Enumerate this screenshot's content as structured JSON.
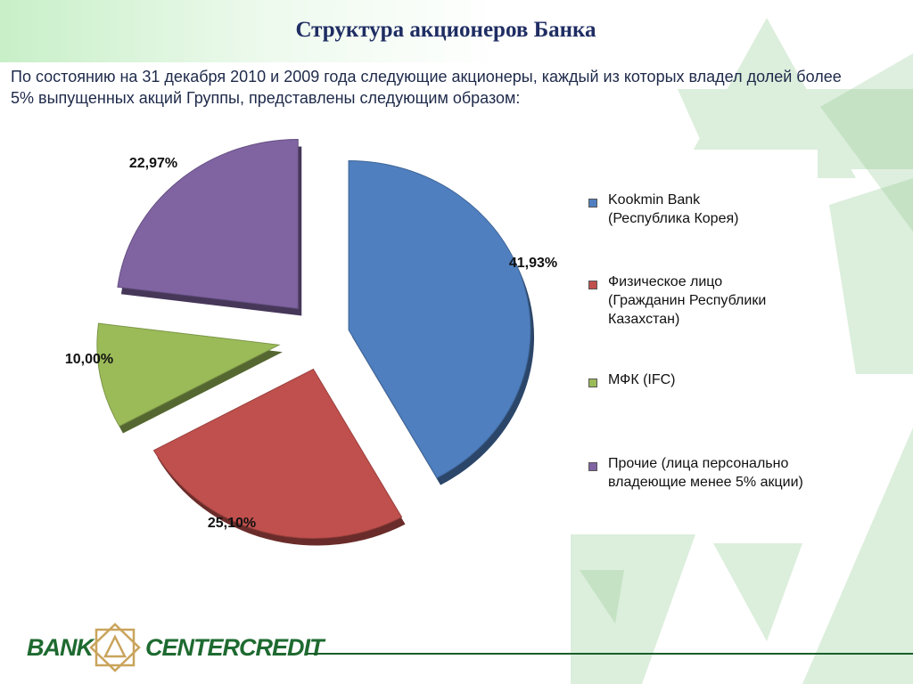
{
  "slide": {
    "title": "Структура акционеров Банка",
    "subtitle": "По состоянию на 31 декабря 2010 и 2009 года следующие акционеры, каждый из которых владел долей более 5% выпущенных акций Группы, представлены следующим образом:"
  },
  "chart_data": {
    "type": "pie",
    "exploded": true,
    "legend_position": "right",
    "slices": [
      {
        "name": "Kookmin Bank\n(Республика Корея)",
        "value": 41.93,
        "label": "41,93%",
        "color": "#4f7fbf"
      },
      {
        "name": "Физическое лицо\n(Гражданин Республики\nКазахстан)",
        "value": 25.1,
        "label": "25,10%",
        "color": "#c0504d"
      },
      {
        "name": "МФК (IFC)",
        "value": 10.0,
        "label": "10,00%",
        "color": "#9bbb59"
      },
      {
        "name": "Прочие (лица персонально\nвладеющие менее 5% акции)",
        "value": 22.97,
        "label": "22,97%",
        "color": "#8064a2"
      }
    ]
  },
  "footer": {
    "logo_left": "BANK",
    "logo_right": "CENTERCREDIT",
    "accent_color": "#1e6a30"
  }
}
